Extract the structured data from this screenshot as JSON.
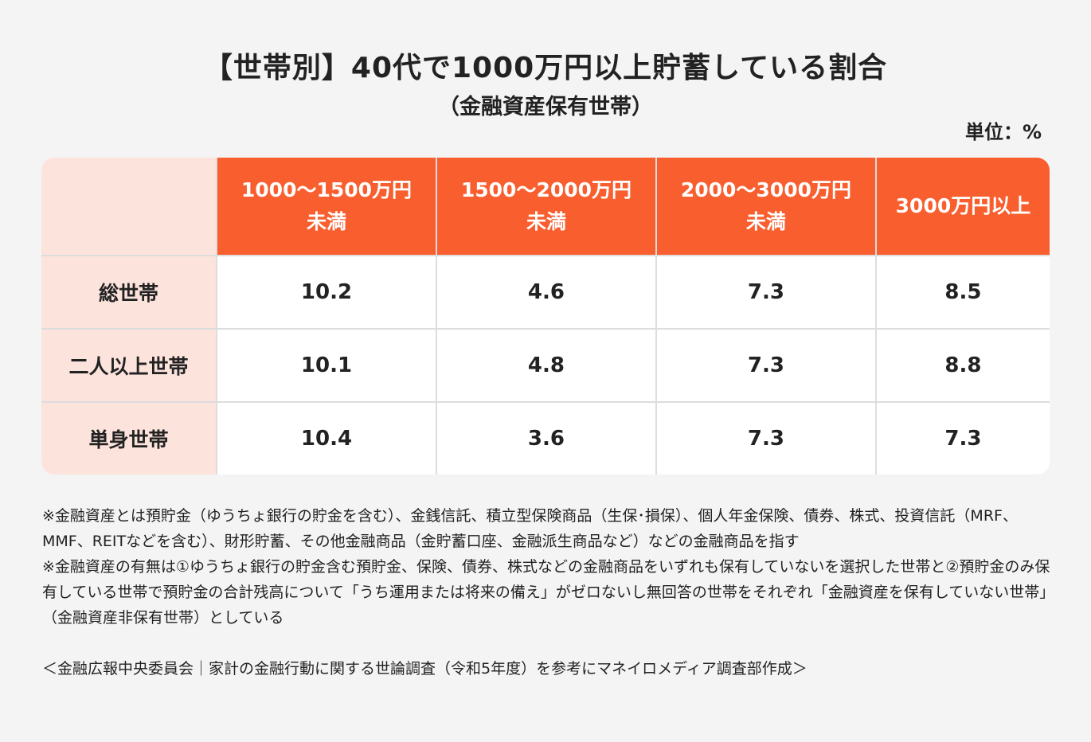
{
  "title": "【世帯別】40代で1000万円以上貯蓄している割合",
  "subtitle": "（金融資産保有世帯）",
  "unit": "単位：%",
  "colors": {
    "header": "#f95e2e",
    "row_header": "#fce3dc",
    "background": "#f4f4f4"
  },
  "chart_data": {
    "type": "table",
    "columns": [
      {
        "line1": "1000〜1500万円",
        "line2": "未満"
      },
      {
        "line1": "1500〜2000万円",
        "line2": "未満"
      },
      {
        "line1": "2000〜3000万円",
        "line2": "未満"
      },
      {
        "line1": "3000万円以上",
        "line2": ""
      }
    ],
    "rows": [
      {
        "label": "総世帯",
        "values": [
          "10.2",
          "4.6",
          "7.3",
          "8.5"
        ]
      },
      {
        "label": "二人以上世帯",
        "values": [
          "10.1",
          "4.8",
          "7.3",
          "8.8"
        ]
      },
      {
        "label": "単身世帯",
        "values": [
          "10.4",
          "3.6",
          "7.3",
          "7.3"
        ]
      }
    ]
  },
  "notes": [
    "※金融資産とは預貯金（ゆうちょ銀行の貯金を含む）、金銭信託、積立型保険商品（生保･損保）、個人年金保険、債券、株式、投資信託（MRF、MMF、REITなどを含む）、財形貯蓄、その他金融商品（金貯蓄口座、金融派生商品など）などの金融商品を指す",
    "※金融資産の有無は①ゆうちょ銀行の貯金含む預貯金、保険、債券、株式などの金融商品をいずれも保有していないを選択した世帯と②預貯金のみ保有している世帯で預貯金の合計残高について「うち運用または将来の備え」がゼロないし無回答の世帯をそれぞれ「金融資産を保有していない世帯」（金融資産非保有世帯）としている"
  ],
  "source": "＜金融広報中央委員会｜家計の金融行動に関する世論調査（令和5年度）を参考にマネイロメディア調査部作成＞"
}
